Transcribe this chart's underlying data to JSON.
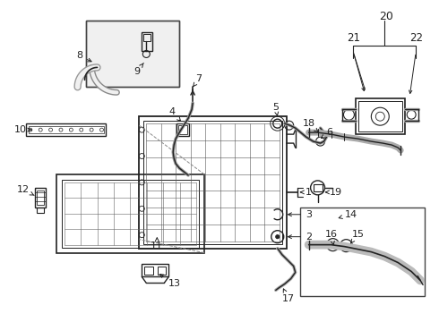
{
  "bg_color": "#ffffff",
  "line_color": "#222222",
  "fig_width": 4.9,
  "fig_height": 3.6,
  "dpi": 100
}
